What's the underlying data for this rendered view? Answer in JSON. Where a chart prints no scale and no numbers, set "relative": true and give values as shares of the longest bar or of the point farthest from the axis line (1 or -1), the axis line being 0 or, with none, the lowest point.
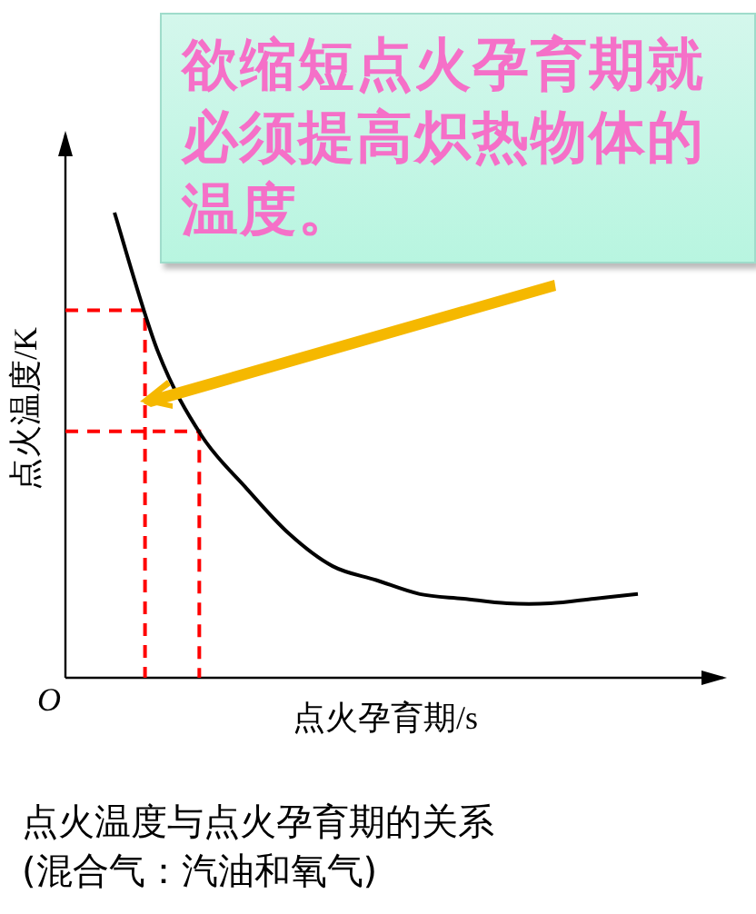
{
  "chart_data": {
    "type": "line",
    "relative": true,
    "title": "点火温度与点火孕育期的关系",
    "subtitle": "(混合气：汽油和氧气)",
    "xlabel": "点火孕育期/s",
    "ylabel": "点火温度/K",
    "categories": [
      null,
      null,
      null,
      null,
      null,
      null,
      null,
      null,
      null,
      null,
      null,
      null,
      null
    ],
    "series": [
      {
        "color": "#000000",
        "values": [
          1,
          0.7,
          0.52,
          0.41,
          0.31,
          0.24,
          0.21,
          0.18,
          0.17,
          0.16,
          0.16,
          0.17,
          0.18
        ]
      }
    ],
    "ref_lines": [
      {
        "axis": "y",
        "value": 0.79,
        "color": "#ff0000",
        "line_style": "dashed"
      },
      {
        "axis": "y",
        "value": 0.53,
        "color": "#ff0000",
        "line_style": "dashed"
      }
    ],
    "annotations": [
      "欲缩短点火孕育期就必须提高炽热物体的温度。",
      "O"
    ]
  }
}
